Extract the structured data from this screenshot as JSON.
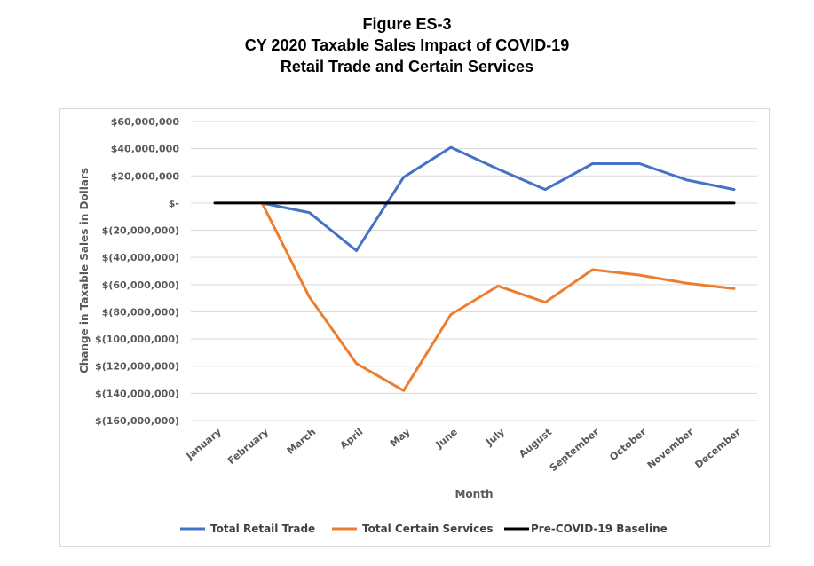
{
  "figure": {
    "label": "Figure ES-3",
    "title_line1": "CY 2020 Taxable Sales Impact of COVID-19",
    "title_line2": "Retail Trade and Certain Services"
  },
  "chart_data": {
    "type": "line",
    "title": "CY 2020 Taxable Sales Impact of COVID-19 — Retail Trade and Certain Services",
    "xlabel": "Month",
    "ylabel": "Change in Taxable Sales in Dollars",
    "categories": [
      "January",
      "February",
      "March",
      "April",
      "May",
      "June",
      "July",
      "August",
      "September",
      "October",
      "November",
      "December"
    ],
    "ylim": [
      -160000000,
      60000000
    ],
    "ytick_values": [
      60000000,
      40000000,
      20000000,
      0,
      -20000000,
      -40000000,
      -60000000,
      -80000000,
      -100000000,
      -120000000,
      -140000000,
      -160000000
    ],
    "ytick_labels": [
      "$60,000,000",
      "$40,000,000",
      "$20,000,000",
      "$-",
      "$(20,000,000)",
      "$(40,000,000)",
      "$(60,000,000)",
      "$(80,000,000)",
      "$(100,000,000)",
      "$(120,000,000)",
      "$(140,000,000)",
      "$(160,000,000)"
    ],
    "grid": true,
    "legend_position": "bottom",
    "series": [
      {
        "name": "Total Retail Trade",
        "color": "#4472C4",
        "values": [
          null,
          0,
          -7000000,
          -35000000,
          19000000,
          41000000,
          25000000,
          10000000,
          29000000,
          29000000,
          17000000,
          10000000
        ]
      },
      {
        "name": "Total Certain Services",
        "color": "#ED7D31",
        "values": [
          null,
          0,
          -69000000,
          -118000000,
          -138000000,
          -82000000,
          -61000000,
          -73000000,
          -49000000,
          -53000000,
          -59000000,
          -63000000
        ]
      },
      {
        "name": "Pre-COVID-19 Baseline",
        "color": "#000000",
        "values": [
          0,
          0,
          0,
          0,
          0,
          0,
          0,
          0,
          0,
          0,
          0,
          0
        ]
      }
    ]
  }
}
